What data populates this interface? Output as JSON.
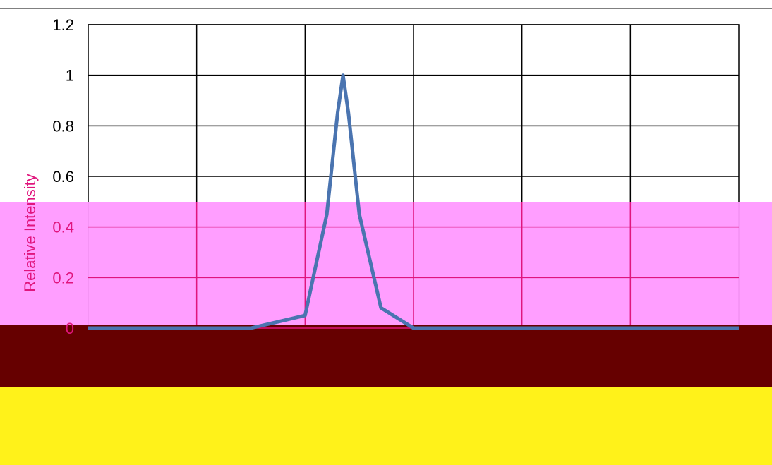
{
  "chart_data": {
    "type": "line",
    "title": "",
    "xlabel": "",
    "ylabel": "Relative Intensity",
    "ylim": [
      0,
      1.2
    ],
    "yticks": [
      "0",
      "0.2",
      "0.4",
      "0.6",
      "0.8",
      "1",
      "1.2"
    ],
    "x_categories": 6,
    "series": [
      {
        "color": "#4a74b0",
        "x": [
          0.0,
          0.5,
          1.0,
          1.5,
          2.0,
          2.2,
          2.3,
          2.35,
          2.4,
          2.5,
          2.7,
          3.0,
          3.5,
          4.0,
          5.0,
          6.0
        ],
        "values": [
          0,
          0,
          0,
          0,
          0.05,
          0.45,
          0.85,
          1.0,
          0.85,
          0.45,
          0.08,
          0,
          0,
          0,
          0,
          0
        ]
      }
    ],
    "grid": true,
    "overlay_colors": {
      "pink_band": "#ff99ff",
      "dark_band": "#660000",
      "yellow_band": "#fff21a",
      "grid_pink": "#e0157d"
    }
  }
}
